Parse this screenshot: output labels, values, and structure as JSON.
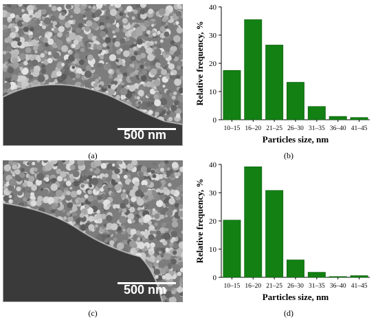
{
  "panels": {
    "a": {
      "caption": "(a)",
      "scale_text": "500 nm"
    },
    "b": {
      "caption": "(b)"
    },
    "c": {
      "caption": "(c)",
      "scale_text": "500 nm"
    },
    "d": {
      "caption": "(d)"
    }
  },
  "colors": {
    "bar": "#128012",
    "bar_edge": "#0a5a0a",
    "axis": "#000000"
  },
  "chart_data": [
    {
      "type": "bar",
      "categories": [
        "10–15",
        "16–20",
        "21–25",
        "26–30",
        "31–35",
        "36–40",
        "41–45"
      ],
      "values": [
        17.5,
        35.5,
        26.5,
        13.3,
        4.7,
        1.2,
        0.8
      ],
      "xlabel": "Particles size, nm",
      "ylabel": "Relative frequency, %",
      "ylim": [
        0,
        40
      ],
      "yticks": [
        0,
        10,
        20,
        30,
        40
      ]
    },
    {
      "type": "bar",
      "categories": [
        "10–15",
        "16–20",
        "21–25",
        "26–30",
        "31–35",
        "36–40",
        "41–45"
      ],
      "values": [
        20.3,
        39.2,
        30.8,
        6.2,
        1.8,
        0.3,
        0.6
      ],
      "xlabel": "Particles size, nm",
      "ylabel": "Relative frequency, %",
      "ylim": [
        0,
        40
      ],
      "yticks": [
        0,
        10,
        20,
        30,
        40
      ]
    }
  ]
}
